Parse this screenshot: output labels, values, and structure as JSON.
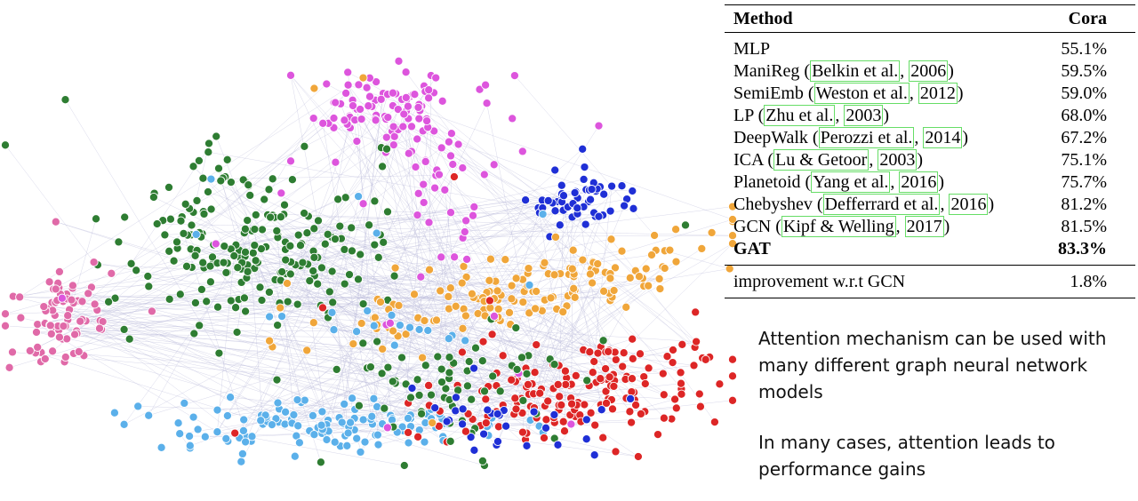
{
  "table": {
    "header": {
      "method": "Method",
      "metric": "Cora"
    },
    "rows": [
      {
        "pre": "MLP",
        "cites": [],
        "post": "",
        "value": "55.1%",
        "bold": false
      },
      {
        "pre": "ManiReg (",
        "cites": [
          "Belkin et al.",
          "2006"
        ],
        "post": ")",
        "value": "59.5%",
        "bold": false
      },
      {
        "pre": "SemiEmb (",
        "cites": [
          "Weston et al.",
          "2012"
        ],
        "post": ")",
        "value": "59.0%",
        "bold": false
      },
      {
        "pre": "LP (",
        "cites": [
          "Zhu et al.",
          "2003"
        ],
        "post": ")",
        "value": "68.0%",
        "bold": false
      },
      {
        "pre": "DeepWalk (",
        "cites": [
          "Perozzi et al.",
          "2014"
        ],
        "post": ")",
        "value": "67.2%",
        "bold": false
      },
      {
        "pre": "ICA (",
        "cites": [
          "Lu & Getoor",
          "2003"
        ],
        "post": ")",
        "value": "75.1%",
        "bold": false
      },
      {
        "pre": "Planetoid (",
        "cites": [
          "Yang et al.",
          "2016"
        ],
        "post": ")",
        "value": "75.7%",
        "bold": false
      },
      {
        "pre": "Chebyshev (",
        "cites": [
          "Defferrard et al.",
          "2016"
        ],
        "post": ")",
        "value": "81.2%",
        "bold": false
      },
      {
        "pre": "GCN (",
        "cites": [
          "Kipf & Welling",
          "2017"
        ],
        "post": ")",
        "value": "81.5%",
        "bold": false
      },
      {
        "pre": "GAT",
        "cites": [],
        "post": "",
        "value": "83.3%",
        "bold": true
      }
    ],
    "improvement": {
      "label": "improvement w.r.t GCN",
      "value": "1.8%"
    }
  },
  "text": {
    "paragraph1": "Attention mechanism can be used with many different graph neural network models",
    "paragraph2": "In many cases, attention leads to performance gains"
  },
  "colors": {
    "green": "#2e7d32",
    "magenta": "#dd55dd",
    "pink": "#e06aa8",
    "blue": "#1f2fd6",
    "orange": "#f0a63a",
    "light_blue": "#5bb0ea",
    "red": "#dd2626",
    "edge": "#b8b8d8",
    "citation_box": "#66dd66"
  }
}
